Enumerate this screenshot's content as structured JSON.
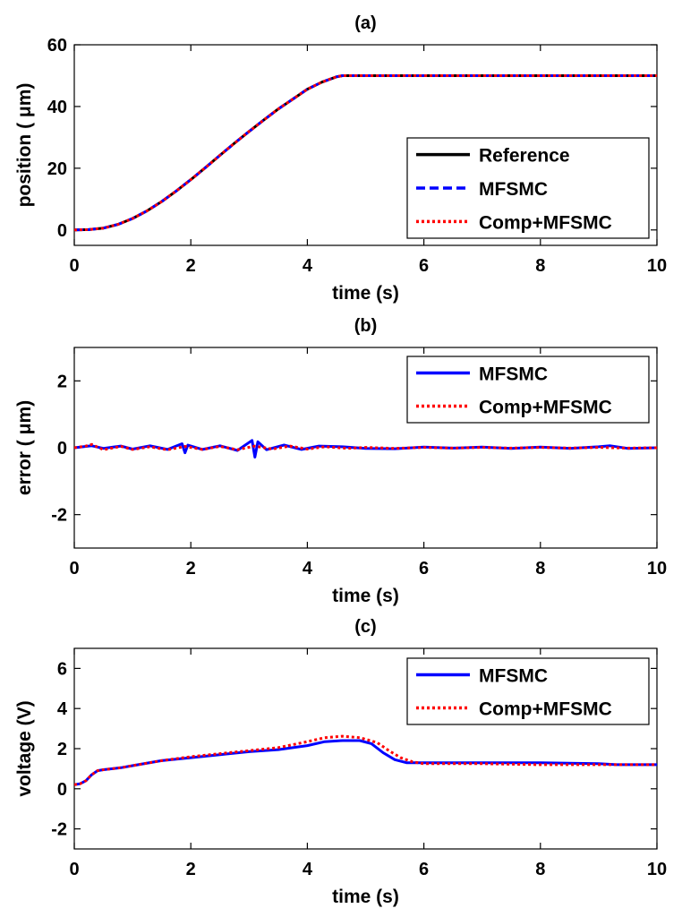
{
  "chart_data": [
    {
      "type": "line",
      "title": "(a)",
      "xlabel": "time (s)",
      "ylabel": "position ( μm)",
      "xlim": [
        0,
        10
      ],
      "ylim": [
        -5,
        60
      ],
      "xticks": [
        0,
        2,
        4,
        6,
        8,
        10
      ],
      "yticks": [
        0,
        20,
        40,
        60
      ],
      "legend_position": "bottom-right",
      "series": [
        {
          "name": "Reference",
          "color": "#000000",
          "style": "solid",
          "x": [
            0,
            0.25,
            0.5,
            0.75,
            1,
            1.25,
            1.5,
            1.75,
            2,
            2.25,
            2.5,
            2.75,
            3,
            3.25,
            3.5,
            3.75,
            4,
            4.25,
            4.5,
            4.6,
            5,
            6,
            7,
            8,
            9,
            10
          ],
          "y": [
            0,
            0.1,
            0.6,
            1.8,
            3.7,
            6.2,
            9.2,
            12.6,
            16.3,
            20.2,
            24.2,
            28.1,
            31.9,
            35.6,
            39.2,
            42.4,
            45.6,
            47.9,
            49.6,
            50,
            50,
            50,
            50,
            50,
            50,
            50
          ]
        },
        {
          "name": "MFSMC",
          "color": "#0000ff",
          "style": "dashed",
          "x": [
            0,
            0.25,
            0.5,
            0.75,
            1,
            1.25,
            1.5,
            1.75,
            2,
            2.25,
            2.5,
            2.75,
            3,
            3.25,
            3.5,
            3.75,
            4,
            4.25,
            4.5,
            4.6,
            5,
            6,
            7,
            8,
            9,
            10
          ],
          "y": [
            0,
            0.1,
            0.6,
            1.8,
            3.7,
            6.2,
            9.2,
            12.6,
            16.3,
            20.2,
            24.2,
            28.1,
            31.9,
            35.6,
            39.2,
            42.4,
            45.6,
            47.9,
            49.6,
            50,
            50,
            50,
            50,
            50,
            50,
            50
          ]
        },
        {
          "name": "Comp+MFSMC",
          "color": "#ff0000",
          "style": "dotted",
          "x": [
            0,
            0.25,
            0.5,
            0.75,
            1,
            1.25,
            1.5,
            1.75,
            2,
            2.25,
            2.5,
            2.75,
            3,
            3.25,
            3.5,
            3.75,
            4,
            4.25,
            4.5,
            4.6,
            5,
            6,
            7,
            8,
            9,
            10
          ],
          "y": [
            0,
            0.1,
            0.6,
            1.8,
            3.7,
            6.2,
            9.2,
            12.6,
            16.3,
            20.2,
            24.2,
            28.1,
            31.9,
            35.6,
            39.2,
            42.4,
            45.6,
            47.9,
            49.6,
            50,
            50,
            50,
            50,
            50,
            50,
            50
          ]
        }
      ]
    },
    {
      "type": "line",
      "title": "(b)",
      "xlabel": "time (s)",
      "ylabel": "error ( μm)",
      "xlim": [
        0,
        10
      ],
      "ylim": [
        -3,
        3
      ],
      "xticks": [
        0,
        2,
        4,
        6,
        8,
        10
      ],
      "yticks": [
        -2,
        0,
        2
      ],
      "legend_position": "top-right",
      "series": [
        {
          "name": "MFSMC",
          "color": "#0000ff",
          "style": "solid",
          "x": [
            0,
            0.2,
            0.3,
            0.5,
            0.8,
            1,
            1.3,
            1.6,
            1.85,
            1.9,
            1.95,
            2.2,
            2.5,
            2.8,
            3.05,
            3.1,
            3.15,
            3.3,
            3.6,
            3.9,
            4.2,
            4.6,
            5,
            5.5,
            6,
            6.5,
            7,
            7.5,
            8,
            8.5,
            9,
            9.2,
            9.5,
            10
          ],
          "y": [
            0,
            0.04,
            0.06,
            -0.02,
            0.05,
            -0.04,
            0.06,
            -0.05,
            0.12,
            -0.15,
            0.08,
            -0.05,
            0.06,
            -0.08,
            0.22,
            -0.28,
            0.18,
            -0.06,
            0.08,
            -0.05,
            0.05,
            0.03,
            -0.02,
            -0.03,
            0.02,
            -0.01,
            0.02,
            -0.02,
            0.02,
            -0.02,
            0.03,
            0.06,
            -0.02,
            0
          ]
        },
        {
          "name": "Comp+MFSMC",
          "color": "#ff0000",
          "style": "dotted",
          "x": [
            0,
            0.2,
            0.3,
            0.5,
            0.8,
            1,
            1.3,
            1.6,
            1.9,
            2.2,
            2.5,
            2.8,
            3.1,
            3.4,
            3.7,
            4,
            4.3,
            4.7,
            5,
            5.5,
            6,
            6.5,
            7,
            7.5,
            8,
            8.5,
            9,
            9.5,
            10
          ],
          "y": [
            0,
            0.05,
            0.1,
            -0.06,
            0.04,
            -0.05,
            0.03,
            -0.06,
            0.04,
            -0.05,
            0.04,
            -0.06,
            0.05,
            -0.04,
            0.05,
            -0.04,
            0.03,
            -0.02,
            0.01,
            -0.02,
            0.01,
            -0.01,
            0.01,
            -0.01,
            0.01,
            -0.01,
            0.01,
            -0.01,
            0
          ]
        }
      ]
    },
    {
      "type": "line",
      "title": "(c)",
      "xlabel": "time (s)",
      "ylabel": "voltage (V)",
      "xlim": [
        0,
        10
      ],
      "ylim": [
        -3,
        7
      ],
      "xticks": [
        0,
        2,
        4,
        6,
        8,
        10
      ],
      "yticks": [
        -2,
        0,
        2,
        4,
        6
      ],
      "legend_position": "top-right",
      "series": [
        {
          "name": "MFSMC",
          "color": "#0000ff",
          "style": "solid",
          "x": [
            0,
            0.1,
            0.2,
            0.3,
            0.4,
            0.5,
            0.8,
            1,
            1.5,
            2,
            2.5,
            3,
            3.5,
            4,
            4.3,
            4.6,
            4.9,
            5.1,
            5.3,
            5.5,
            5.7,
            6,
            7,
            8,
            9,
            9.3,
            10
          ],
          "y": [
            0.2,
            0.25,
            0.4,
            0.7,
            0.9,
            0.95,
            1.05,
            1.15,
            1.4,
            1.55,
            1.7,
            1.85,
            1.95,
            2.15,
            2.35,
            2.4,
            2.4,
            2.25,
            1.8,
            1.45,
            1.3,
            1.3,
            1.3,
            1.3,
            1.25,
            1.2,
            1.2
          ]
        },
        {
          "name": "Comp+MFSMC",
          "color": "#ff0000",
          "style": "dotted",
          "x": [
            0,
            0.1,
            0.2,
            0.3,
            0.4,
            0.5,
            0.8,
            1,
            1.5,
            2,
            2.5,
            3,
            3.5,
            4,
            4.3,
            4.6,
            4.9,
            5.2,
            5.4,
            5.6,
            5.8,
            6,
            7,
            8,
            9,
            9.3,
            10
          ],
          "y": [
            0.2,
            0.25,
            0.4,
            0.7,
            0.9,
            0.95,
            1.05,
            1.15,
            1.4,
            1.6,
            1.75,
            1.9,
            2.05,
            2.35,
            2.55,
            2.62,
            2.55,
            2.3,
            1.9,
            1.55,
            1.35,
            1.25,
            1.25,
            1.2,
            1.2,
            1.2,
            1.2
          ]
        }
      ]
    }
  ]
}
